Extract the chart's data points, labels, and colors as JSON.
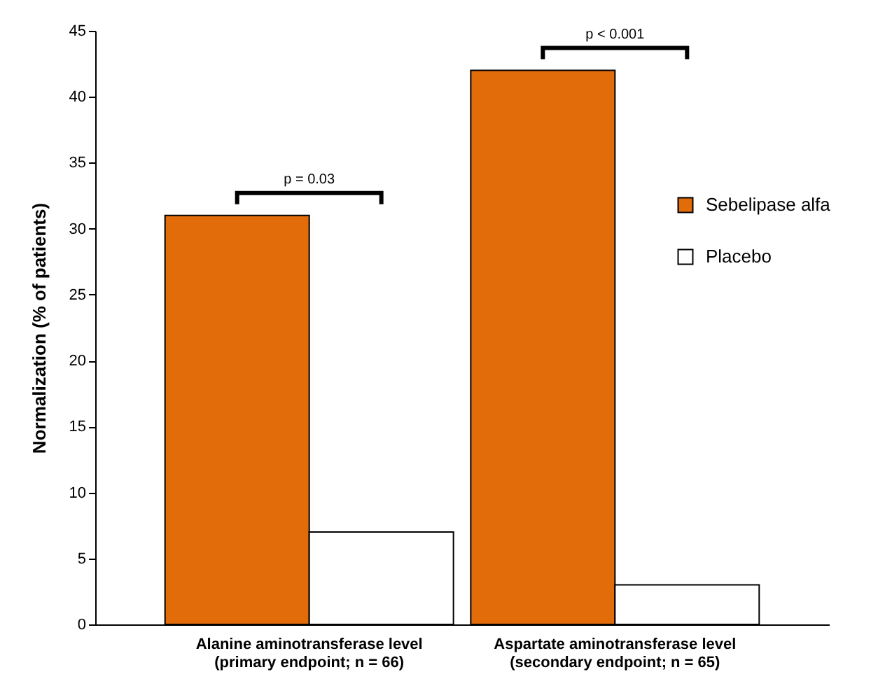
{
  "chart_data": {
    "type": "bar",
    "ylabel": "Normalization (% of patients)",
    "categories": [
      "Alanine aminotransferase  level\n(primary endpoint; n = 66)",
      "Aspartate aminotransferase level\n(secondary endpoint; n = 65)"
    ],
    "series": [
      {
        "name": "Sebelipase alfa",
        "color": "#e36c0a",
        "values": [
          31,
          42
        ]
      },
      {
        "name": "Placebo",
        "color": "#ffffff",
        "values": [
          7,
          3
        ]
      }
    ],
    "ylim": [
      0,
      45
    ],
    "yticks": [
      0,
      5,
      10,
      15,
      20,
      25,
      30,
      35,
      40,
      45
    ],
    "grid": false,
    "legend": "right",
    "annotations": [
      "p = 0.03",
      "p < 0.001"
    ]
  }
}
